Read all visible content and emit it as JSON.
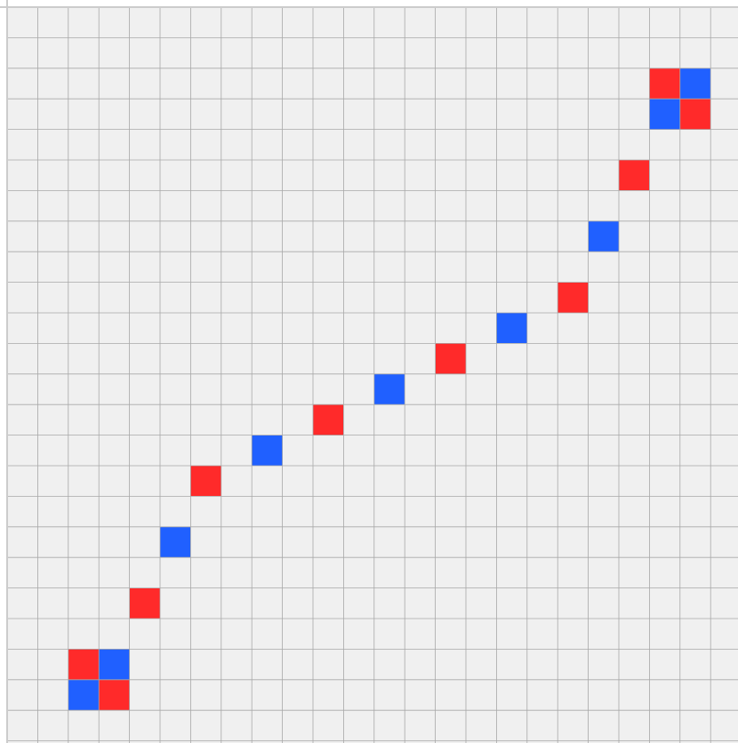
{
  "board": {
    "columns": 24,
    "rows": 24,
    "cells": [
      {
        "row": 2,
        "col": 21,
        "color": "red"
      },
      {
        "row": 2,
        "col": 22,
        "color": "blue"
      },
      {
        "row": 3,
        "col": 21,
        "color": "blue"
      },
      {
        "row": 3,
        "col": 22,
        "color": "red"
      },
      {
        "row": 5,
        "col": 20,
        "color": "red"
      },
      {
        "row": 7,
        "col": 19,
        "color": "blue"
      },
      {
        "row": 9,
        "col": 18,
        "color": "red"
      },
      {
        "row": 10,
        "col": 16,
        "color": "blue"
      },
      {
        "row": 11,
        "col": 14,
        "color": "red"
      },
      {
        "row": 12,
        "col": 12,
        "color": "blue"
      },
      {
        "row": 13,
        "col": 10,
        "color": "red"
      },
      {
        "row": 14,
        "col": 8,
        "color": "blue"
      },
      {
        "row": 15,
        "col": 6,
        "color": "red"
      },
      {
        "row": 17,
        "col": 5,
        "color": "blue"
      },
      {
        "row": 19,
        "col": 4,
        "color": "red"
      },
      {
        "row": 21,
        "col": 2,
        "color": "red"
      },
      {
        "row": 21,
        "col": 3,
        "color": "blue"
      },
      {
        "row": 22,
        "col": 2,
        "color": "blue"
      },
      {
        "row": 22,
        "col": 3,
        "color": "red"
      }
    ]
  }
}
